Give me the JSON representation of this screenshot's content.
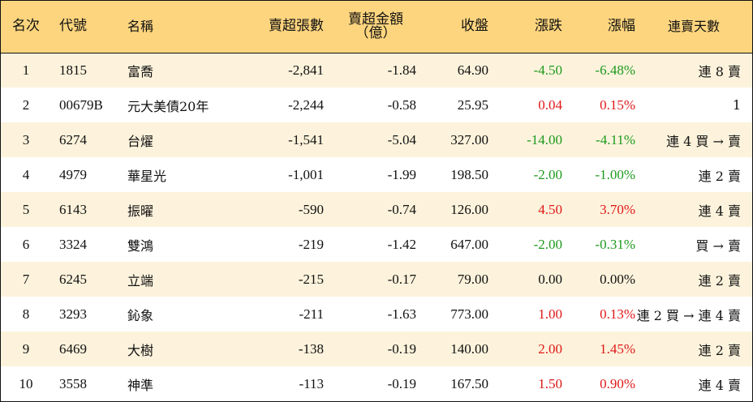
{
  "columns": {
    "rank": "名次",
    "code": "代號",
    "name": "名稱",
    "sell_volume": "賣超張數",
    "sell_amount_line1": "賣超金額",
    "sell_amount_line2": "（億）",
    "close": "收盤",
    "change": "漲跌",
    "change_pct": "漲幅",
    "streak": "連賣天數"
  },
  "colors": {
    "header_bg": "#fdd57e",
    "row_alt_bg": "#fdf3dc",
    "down_green": "#1e9a1e",
    "up_red": "#e01818"
  },
  "rows": [
    {
      "rank": "1",
      "code": "1815",
      "name": "富喬",
      "sell_volume": "-2,841",
      "sell_amount": "-1.84",
      "close": "64.90",
      "change": "-4.50",
      "change_pct": "-6.48%",
      "trend": "down",
      "streak": "連 8 賣"
    },
    {
      "rank": "2",
      "code": "00679B",
      "name": "元大美債20年",
      "sell_volume": "-2,244",
      "sell_amount": "-0.58",
      "close": "25.95",
      "change": "0.04",
      "change_pct": "0.15%",
      "trend": "up",
      "streak": "1"
    },
    {
      "rank": "3",
      "code": "6274",
      "name": "台燿",
      "sell_volume": "-1,541",
      "sell_amount": "-5.04",
      "close": "327.00",
      "change": "-14.00",
      "change_pct": "-4.11%",
      "trend": "down",
      "streak": "連 4 買 → 賣"
    },
    {
      "rank": "4",
      "code": "4979",
      "name": "華星光",
      "sell_volume": "-1,001",
      "sell_amount": "-1.99",
      "close": "198.50",
      "change": "-2.00",
      "change_pct": "-1.00%",
      "trend": "down",
      "streak": "連 2 賣"
    },
    {
      "rank": "5",
      "code": "6143",
      "name": "振曜",
      "sell_volume": "-590",
      "sell_amount": "-0.74",
      "close": "126.00",
      "change": "4.50",
      "change_pct": "3.70%",
      "trend": "up",
      "streak": "連 4 賣"
    },
    {
      "rank": "6",
      "code": "3324",
      "name": "雙鴻",
      "sell_volume": "-219",
      "sell_amount": "-1.42",
      "close": "647.00",
      "change": "-2.00",
      "change_pct": "-0.31%",
      "trend": "down",
      "streak": "買 → 賣"
    },
    {
      "rank": "7",
      "code": "6245",
      "name": "立端",
      "sell_volume": "-215",
      "sell_amount": "-0.17",
      "close": "79.00",
      "change": "0.00",
      "change_pct": "0.00%",
      "trend": "flat",
      "streak": "連 2 賣"
    },
    {
      "rank": "8",
      "code": "3293",
      "name": "鈊象",
      "sell_volume": "-211",
      "sell_amount": "-1.63",
      "close": "773.00",
      "change": "1.00",
      "change_pct": "0.13%",
      "trend": "up",
      "streak": "連 2 買 → 連 4 賣"
    },
    {
      "rank": "9",
      "code": "6469",
      "name": "大樹",
      "sell_volume": "-138",
      "sell_amount": "-0.19",
      "close": "140.00",
      "change": "2.00",
      "change_pct": "1.45%",
      "trend": "up",
      "streak": "連 2 賣"
    },
    {
      "rank": "10",
      "code": "3558",
      "name": "神準",
      "sell_volume": "-113",
      "sell_amount": "-0.19",
      "close": "167.50",
      "change": "1.50",
      "change_pct": "0.90%",
      "trend": "up",
      "streak": "連 4 賣"
    }
  ]
}
